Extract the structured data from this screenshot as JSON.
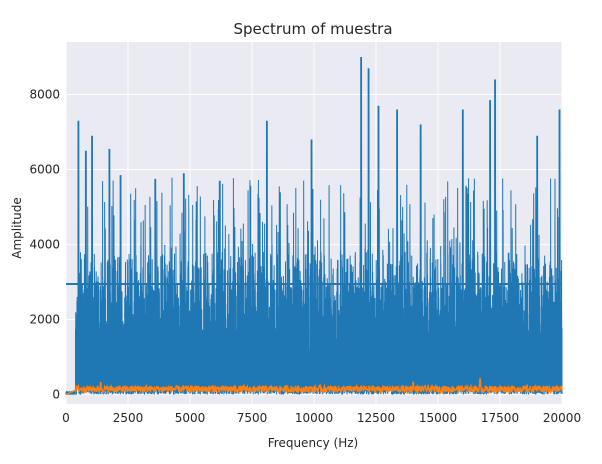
{
  "chart_data": {
    "type": "line",
    "title": "Spectrum of muestra",
    "xlabel": "Frequency (Hz)",
    "ylabel": "Amplitude",
    "xlim": [
      0,
      20000
    ],
    "ylim": [
      -250,
      9400
    ],
    "xticks": [
      0,
      2500,
      5000,
      7500,
      10000,
      12500,
      15000,
      17500,
      20000
    ],
    "yticks": [
      0,
      2000,
      4000,
      6000,
      8000
    ],
    "grid": true,
    "background": "#EAEAF2",
    "series": [
      {
        "color": "#1F77B4",
        "baseline_amplitude": 2950,
        "peaks": [
          [
            500,
            7300
          ],
          [
            800,
            6500
          ],
          [
            1050,
            6900
          ],
          [
            1750,
            6550
          ],
          [
            2200,
            5850
          ],
          [
            3600,
            5750
          ],
          [
            4750,
            5900
          ],
          [
            6200,
            5700
          ],
          [
            8100,
            7300
          ],
          [
            9900,
            6800
          ],
          [
            11900,
            9000
          ],
          [
            12200,
            8700
          ],
          [
            12600,
            7700
          ],
          [
            13350,
            7600
          ],
          [
            14300,
            7200
          ],
          [
            16000,
            7600
          ],
          [
            17100,
            7850
          ],
          [
            17300,
            8400
          ],
          [
            19000,
            6900
          ],
          [
            19900,
            7600
          ]
        ]
      },
      {
        "color": "#FF7F0E",
        "typical_amplitude": 150,
        "peaks": [
          [
            1400,
            320
          ],
          [
            14000,
            330
          ],
          [
            16700,
            420
          ]
        ]
      }
    ]
  }
}
